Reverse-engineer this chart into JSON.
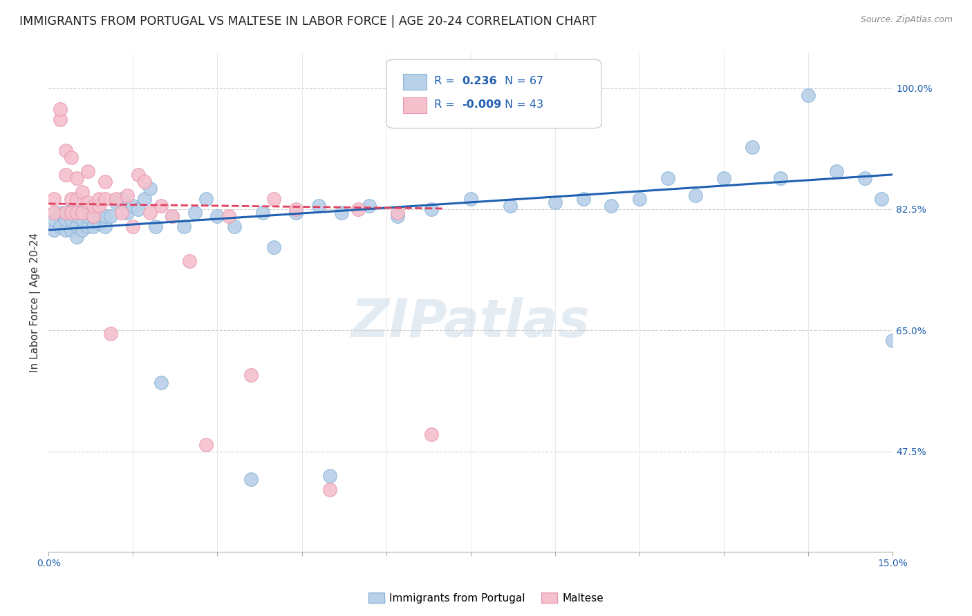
{
  "title": "IMMIGRANTS FROM PORTUGAL VS MALTESE IN LABOR FORCE | AGE 20-24 CORRELATION CHART",
  "source": "Source: ZipAtlas.com",
  "ylabel": "In Labor Force | Age 20-24",
  "xlim": [
    0.0,
    0.15
  ],
  "ylim": [
    0.33,
    1.05
  ],
  "xticks": [
    0.0,
    0.015,
    0.03,
    0.045,
    0.06,
    0.075,
    0.09,
    0.105,
    0.12,
    0.135,
    0.15
  ],
  "xticklabels": [
    "0.0%",
    "",
    "",
    "",
    "",
    "",
    "",
    "",
    "",
    "",
    "15.0%"
  ],
  "ytick_positions": [
    0.475,
    0.65,
    0.825,
    1.0
  ],
  "ytick_labels": [
    "47.5%",
    "65.0%",
    "82.5%",
    "100.0%"
  ],
  "blue_color": "#b8d0e8",
  "blue_edge_color": "#8ab4d8",
  "pink_color": "#f4c0cc",
  "pink_edge_color": "#e898b0",
  "blue_line_color": "#2060b0",
  "pink_line_color": "#e04060",
  "legend_text_color": "#2060b0",
  "watermark": "ZIPatlas",
  "title_fontsize": 12.5,
  "axis_label_fontsize": 11,
  "tick_fontsize": 10,
  "blue_scatter_x": [
    0.001,
    0.001,
    0.002,
    0.002,
    0.003,
    0.003,
    0.003,
    0.004,
    0.004,
    0.004,
    0.005,
    0.005,
    0.005,
    0.005,
    0.006,
    0.006,
    0.006,
    0.007,
    0.007,
    0.008,
    0.008,
    0.009,
    0.009,
    0.01,
    0.01,
    0.011,
    0.012,
    0.013,
    0.014,
    0.015,
    0.016,
    0.017,
    0.018,
    0.019,
    0.02,
    0.022,
    0.024,
    0.026,
    0.028,
    0.03,
    0.033,
    0.036,
    0.04,
    0.044,
    0.048,
    0.052,
    0.057,
    0.062,
    0.068,
    0.075,
    0.082,
    0.09,
    0.095,
    0.1,
    0.105,
    0.11,
    0.115,
    0.12,
    0.125,
    0.13,
    0.135,
    0.14,
    0.145,
    0.148,
    0.15,
    0.038,
    0.05
  ],
  "blue_scatter_y": [
    0.795,
    0.81,
    0.8,
    0.82,
    0.795,
    0.81,
    0.82,
    0.795,
    0.81,
    0.825,
    0.785,
    0.8,
    0.815,
    0.825,
    0.795,
    0.81,
    0.82,
    0.8,
    0.815,
    0.8,
    0.815,
    0.805,
    0.815,
    0.8,
    0.815,
    0.815,
    0.835,
    0.84,
    0.82,
    0.83,
    0.825,
    0.84,
    0.855,
    0.8,
    0.575,
    0.815,
    0.8,
    0.82,
    0.84,
    0.815,
    0.8,
    0.435,
    0.77,
    0.82,
    0.83,
    0.82,
    0.83,
    0.815,
    0.825,
    0.84,
    0.83,
    0.835,
    0.84,
    0.83,
    0.84,
    0.87,
    0.845,
    0.87,
    0.915,
    0.87,
    0.99,
    0.88,
    0.87,
    0.84,
    0.635,
    0.82,
    0.44
  ],
  "pink_scatter_x": [
    0.001,
    0.001,
    0.002,
    0.002,
    0.003,
    0.003,
    0.003,
    0.004,
    0.004,
    0.004,
    0.005,
    0.005,
    0.005,
    0.006,
    0.006,
    0.007,
    0.007,
    0.008,
    0.008,
    0.009,
    0.009,
    0.01,
    0.01,
    0.011,
    0.012,
    0.013,
    0.014,
    0.015,
    0.016,
    0.017,
    0.018,
    0.02,
    0.022,
    0.025,
    0.028,
    0.032,
    0.036,
    0.04,
    0.044,
    0.05,
    0.055,
    0.062,
    0.068
  ],
  "pink_scatter_y": [
    0.82,
    0.84,
    0.955,
    0.97,
    0.82,
    0.875,
    0.91,
    0.82,
    0.84,
    0.9,
    0.82,
    0.84,
    0.87,
    0.82,
    0.85,
    0.88,
    0.835,
    0.815,
    0.83,
    0.83,
    0.84,
    0.84,
    0.865,
    0.645,
    0.84,
    0.82,
    0.845,
    0.8,
    0.875,
    0.865,
    0.82,
    0.83,
    0.815,
    0.75,
    0.485,
    0.815,
    0.585,
    0.84,
    0.825,
    0.42,
    0.825,
    0.82,
    0.5
  ],
  "blue_trend_x": [
    0.0,
    0.15
  ],
  "blue_trend_y": [
    0.795,
    0.875
  ],
  "pink_trend_x": [
    0.0,
    0.07
  ],
  "pink_trend_y": [
    0.833,
    0.826
  ]
}
